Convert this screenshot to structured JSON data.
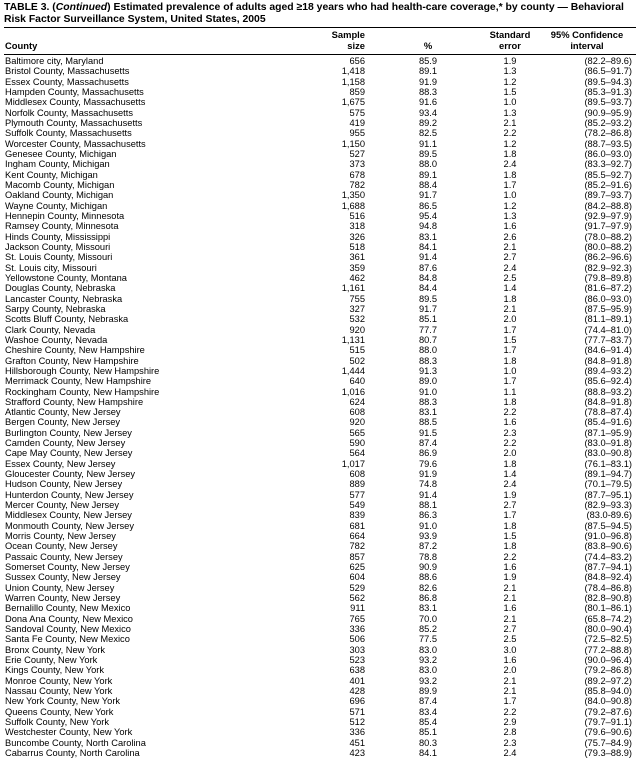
{
  "title": {
    "prefix": "TABLE 3. (",
    "continued": "Continued",
    "text": ") Estimated prevalence of adults aged ≥18 years who had health-care coverage,* by county — Behavioral Risk Factor Surveillance System, United States, 2005"
  },
  "headers": {
    "county": "County",
    "size_l1": "Sample",
    "size_l2": "size",
    "pct": "%",
    "se_l1": "Standard",
    "se_l2": "error",
    "ci_l1": "95% Confidence",
    "ci_l2": "interval"
  },
  "rows": [
    [
      "Baltimore city, Maryland",
      "656",
      "85.9",
      "1.9",
      "(82.2–89.6)"
    ],
    [
      "Bristol County, Massachusetts",
      "1,418",
      "89.1",
      "1.3",
      "(86.5–91.7)"
    ],
    [
      "Essex County, Massachusetts",
      "1,158",
      "91.9",
      "1.2",
      "(89.5–94.3)"
    ],
    [
      "Hampden County, Massachusetts",
      "859",
      "88.3",
      "1.5",
      "(85.3–91.3)"
    ],
    [
      "Middlesex County, Massachusetts",
      "1,675",
      "91.6",
      "1.0",
      "(89.5–93.7)"
    ],
    [
      "Norfolk County, Massachusetts",
      "575",
      "93.4",
      "1.3",
      "(90.9–95.9)"
    ],
    [
      "Plymouth County, Massachusetts",
      "419",
      "89.2",
      "2.1",
      "(85.2–93.2)"
    ],
    [
      "Suffolk County, Massachusetts",
      "955",
      "82.5",
      "2.2",
      "(78.2–86.8)"
    ],
    [
      "Worcester County, Massachusetts",
      "1,150",
      "91.1",
      "1.2",
      "(88.7–93.5)"
    ],
    [
      "Genesee County, Michigan",
      "527",
      "89.5",
      "1.8",
      "(86.0–93.0)"
    ],
    [
      "Ingham County, Michigan",
      "373",
      "88.0",
      "2.4",
      "(83.3–92.7)"
    ],
    [
      "Kent County, Michigan",
      "678",
      "89.1",
      "1.8",
      "(85.5–92.7)"
    ],
    [
      "Macomb County, Michigan",
      "782",
      "88.4",
      "1.7",
      "(85.2–91.6)"
    ],
    [
      "Oakland County, Michigan",
      "1,350",
      "91.7",
      "1.0",
      "(89.7–93.7)"
    ],
    [
      "Wayne County, Michigan",
      "1,688",
      "86.5",
      "1.2",
      "(84.2–88.8)"
    ],
    [
      "Hennepin County, Minnesota",
      "516",
      "95.4",
      "1.3",
      "(92.9–97.9)"
    ],
    [
      "Ramsey County, Minnesota",
      "318",
      "94.8",
      "1.6",
      "(91.7–97.9)"
    ],
    [
      "Hinds County, Mississippi",
      "326",
      "83.1",
      "2.6",
      "(78.0–88.2)"
    ],
    [
      "Jackson County, Missouri",
      "518",
      "84.1",
      "2.1",
      "(80.0–88.2)"
    ],
    [
      "St. Louis County, Missouri",
      "361",
      "91.4",
      "2.7",
      "(86.2–96.6)"
    ],
    [
      "St. Louis city, Missouri",
      "359",
      "87.6",
      "2.4",
      "(82.9–92.3)"
    ],
    [
      "Yellowstone County, Montana",
      "462",
      "84.8",
      "2.5",
      "(79.8–89.8)"
    ],
    [
      "Douglas County, Nebraska",
      "1,161",
      "84.4",
      "1.4",
      "(81.6–87.2)"
    ],
    [
      "Lancaster County, Nebraska",
      "755",
      "89.5",
      "1.8",
      "(86.0–93.0)"
    ],
    [
      "Sarpy County, Nebraska",
      "327",
      "91.7",
      "2.1",
      "(87.5–95.9)"
    ],
    [
      "Scotts Bluff County, Nebraska",
      "532",
      "85.1",
      "2.0",
      "(81.1–89.1)"
    ],
    [
      "Clark County, Nevada",
      "920",
      "77.7",
      "1.7",
      "(74.4–81.0)"
    ],
    [
      "Washoe County, Nevada",
      "1,131",
      "80.7",
      "1.5",
      "(77.7–83.7)"
    ],
    [
      "Cheshire County, New Hampshire",
      "515",
      "88.0",
      "1.7",
      "(84.6–91.4)"
    ],
    [
      "Grafton County, New Hampshire",
      "502",
      "88.3",
      "1.8",
      "(84.8–91.8)"
    ],
    [
      "Hillsborough County, New Hampshire",
      "1,444",
      "91.3",
      "1.0",
      "(89.4–93.2)"
    ],
    [
      "Merrimack County, New Hampshire",
      "640",
      "89.0",
      "1.7",
      "(85.6–92.4)"
    ],
    [
      "Rockingham County, New Hampshire",
      "1,016",
      "91.0",
      "1.1",
      "(88.8–93.2)"
    ],
    [
      "Strafford County, New Hampshire",
      "624",
      "88.3",
      "1.8",
      "(84.8–91.8)"
    ],
    [
      "Atlantic County, New Jersey",
      "608",
      "83.1",
      "2.2",
      "(78.8–87.4)"
    ],
    [
      "Bergen County, New Jersey",
      "920",
      "88.5",
      "1.6",
      "(85.4–91.6)"
    ],
    [
      "Burlington County, New Jersey",
      "565",
      "91.5",
      "2.3",
      "(87.1–95.9)"
    ],
    [
      "Camden County, New Jersey",
      "590",
      "87.4",
      "2.2",
      "(83.0–91.8)"
    ],
    [
      "Cape May County, New Jersey",
      "564",
      "86.9",
      "2.0",
      "(83.0–90.8)"
    ],
    [
      "Essex County, New Jersey",
      "1,017",
      "79.6",
      "1.8",
      "(76.1–83.1)"
    ],
    [
      "Gloucester County, New Jersey",
      "608",
      "91.9",
      "1.4",
      "(89.1–94.7)"
    ],
    [
      "Hudson County, New Jersey",
      "889",
      "74.8",
      "2.4",
      "(70.1–79.5)"
    ],
    [
      "Hunterdon County, New Jersey",
      "577",
      "91.4",
      "1.9",
      "(87.7–95.1)"
    ],
    [
      "Mercer County, New Jersey",
      "549",
      "88.1",
      "2.7",
      "(82.9–93.3)"
    ],
    [
      "Middlesex County, New Jersey",
      "839",
      "86.3",
      "1.7",
      "(83.0-89.6)"
    ],
    [
      "Monmouth County, New Jersey",
      "681",
      "91.0",
      "1.8",
      "(87.5–94.5)"
    ],
    [
      "Morris County, New Jersey",
      "664",
      "93.9",
      "1.5",
      "(91.0–96.8)"
    ],
    [
      "Ocean County, New Jersey",
      "782",
      "87.2",
      "1.8",
      "(83.8–90.6)"
    ],
    [
      "Passaic County, New Jersey",
      "857",
      "78.8",
      "2.2",
      "(74.4–83.2)"
    ],
    [
      "Somerset County, New Jersey",
      "625",
      "90.9",
      "1.6",
      "(87.7–94.1)"
    ],
    [
      "Sussex County, New Jersey",
      "604",
      "88.6",
      "1.9",
      "(84.8–92.4)"
    ],
    [
      "Union County, New Jersey",
      "529",
      "82.6",
      "2.1",
      "(78.4–86.8)"
    ],
    [
      "Warren County, New Jersey",
      "562",
      "86.8",
      "2.1",
      "(82.8–90.8)"
    ],
    [
      "Bernalillo County, New Mexico",
      "911",
      "83.1",
      "1.6",
      "(80.1–86.1)"
    ],
    [
      "Dona Ana County, New Mexico",
      "765",
      "70.0",
      "2.1",
      "(65.8–74.2)"
    ],
    [
      "Sandoval County, New Mexico",
      "336",
      "85.2",
      "2.7",
      "(80.0–90.4)"
    ],
    [
      "Santa Fe County, New Mexico",
      "506",
      "77.5",
      "2.5",
      "(72.5–82.5)"
    ],
    [
      "Bronx County, New York",
      "303",
      "83.0",
      "3.0",
      "(77.2–88.8)"
    ],
    [
      "Erie County, New York",
      "523",
      "93.2",
      "1.6",
      "(90.0–96.4)"
    ],
    [
      "Kings County, New York",
      "638",
      "83.0",
      "2.0",
      "(79.2–86.8)"
    ],
    [
      "Monroe County, New York",
      "401",
      "93.2",
      "2.1",
      "(89.2–97.2)"
    ],
    [
      "Nassau County, New York",
      "428",
      "89.9",
      "2.1",
      "(85.8–94.0)"
    ],
    [
      "New York County, New York",
      "696",
      "87.4",
      "1.7",
      "(84.0–90.8)"
    ],
    [
      "Queens County, New York",
      "571",
      "83.4",
      "2.2",
      "(79.2–87.6)"
    ],
    [
      "Suffolk County, New York",
      "512",
      "85.4",
      "2.9",
      "(79.7–91.1)"
    ],
    [
      "Westchester County, New York",
      "336",
      "85.1",
      "2.8",
      "(79.6–90.6)"
    ],
    [
      "Buncombe County, North Carolina",
      "451",
      "80.3",
      "2.3",
      "(75.7–84.9)"
    ],
    [
      "Cabarrus County, North Carolina",
      "423",
      "84.1",
      "2.4",
      "(79.3–88.9)"
    ]
  ]
}
